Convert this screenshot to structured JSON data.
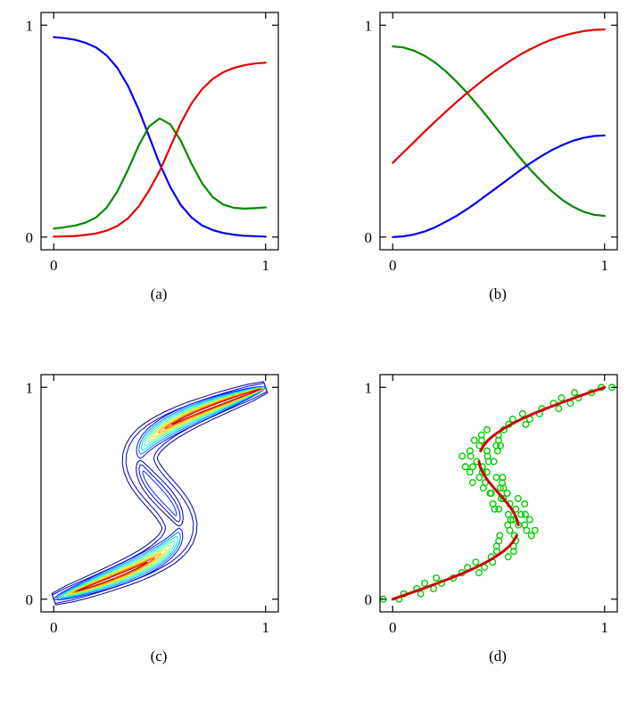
{
  "figure": {
    "background": "#ffffff",
    "panel_count": 4
  },
  "chart_data": [
    {
      "id": "a",
      "type": "line",
      "caption": "(a)",
      "xlim": [
        -0.06,
        1.06
      ],
      "ylim": [
        -0.06,
        1.06
      ],
      "xticks": [
        0,
        1
      ],
      "yticks": [
        0,
        1
      ],
      "xtick_labels": [
        "0",
        "1"
      ],
      "ytick_labels": [
        "0",
        "1"
      ],
      "grid": false,
      "legend": false,
      "x": [
        0,
        0.05,
        0.1,
        0.15,
        0.2,
        0.25,
        0.3,
        0.35,
        0.4,
        0.45,
        0.5,
        0.55,
        0.6,
        0.65,
        0.7,
        0.75,
        0.8,
        0.85,
        0.9,
        0.95,
        1
      ],
      "series": [
        {
          "name": "blue-decreasing-curve",
          "color": "#0000f0",
          "values": [
            0.944,
            0.939,
            0.931,
            0.917,
            0.895,
            0.857,
            0.799,
            0.714,
            0.604,
            0.475,
            0.346,
            0.236,
            0.151,
            0.093,
            0.055,
            0.033,
            0.019,
            0.011,
            0.006,
            0.004,
            0.002
          ]
        },
        {
          "name": "green-bump-curve",
          "color": "#008a00",
          "values": [
            0.04,
            0.046,
            0.054,
            0.068,
            0.093,
            0.139,
            0.214,
            0.317,
            0.43,
            0.522,
            0.56,
            0.532,
            0.454,
            0.347,
            0.254,
            0.189,
            0.153,
            0.138,
            0.134,
            0.136,
            0.14
          ]
        },
        {
          "name": "red-increasing-curve",
          "color": "#e60000",
          "values": [
            0.002,
            0.003,
            0.005,
            0.01,
            0.017,
            0.03,
            0.052,
            0.088,
            0.143,
            0.22,
            0.312,
            0.425,
            0.538,
            0.63,
            0.698,
            0.746,
            0.778,
            0.798,
            0.811,
            0.819,
            0.823
          ]
        }
      ]
    },
    {
      "id": "b",
      "type": "line",
      "caption": "(b)",
      "xlim": [
        -0.06,
        1.06
      ],
      "ylim": [
        -0.06,
        1.06
      ],
      "xticks": [
        0,
        1
      ],
      "yticks": [
        0,
        1
      ],
      "xtick_labels": [
        "0",
        "1"
      ],
      "ytick_labels": [
        "0",
        "1"
      ],
      "grid": false,
      "legend": false,
      "x": [
        0,
        0.05,
        0.1,
        0.15,
        0.2,
        0.25,
        0.3,
        0.35,
        0.4,
        0.45,
        0.5,
        0.55,
        0.6,
        0.65,
        0.7,
        0.75,
        0.8,
        0.85,
        0.9,
        0.95,
        1
      ],
      "series": [
        {
          "name": "green-decreasing-curve",
          "color": "#008a00",
          "values": [
            0.9,
            0.895,
            0.88,
            0.856,
            0.824,
            0.783,
            0.735,
            0.682,
            0.624,
            0.563,
            0.5,
            0.437,
            0.376,
            0.318,
            0.265,
            0.217,
            0.176,
            0.144,
            0.12,
            0.105,
            0.1
          ]
        },
        {
          "name": "red-increasing-curve",
          "color": "#e60000",
          "values": [
            0.35,
            0.399,
            0.448,
            0.497,
            0.545,
            0.591,
            0.636,
            0.679,
            0.72,
            0.759,
            0.795,
            0.829,
            0.86,
            0.887,
            0.911,
            0.932,
            0.949,
            0.962,
            0.972,
            0.978,
            0.98
          ]
        },
        {
          "name": "blue-increasing-curve",
          "color": "#0000f0",
          "values": [
            0,
            0.003,
            0.012,
            0.026,
            0.046,
            0.072,
            0.099,
            0.131,
            0.166,
            0.203,
            0.24,
            0.277,
            0.314,
            0.349,
            0.381,
            0.41,
            0.434,
            0.454,
            0.468,
            0.477,
            0.48
          ]
        }
      ]
    },
    {
      "id": "c",
      "type": "contour",
      "caption": "(c)",
      "xlim": [
        -0.06,
        1.06
      ],
      "ylim": [
        -0.06,
        1.06
      ],
      "xticks": [
        0,
        1
      ],
      "yticks": [
        0,
        1
      ],
      "xtick_labels": [
        "0",
        "1"
      ],
      "ytick_labels": [
        "0",
        "1"
      ],
      "grid": false,
      "legend": false,
      "spine_t": [
        0,
        0.025,
        0.05,
        0.075,
        0.1,
        0.125,
        0.15,
        0.175,
        0.2,
        0.225,
        0.25,
        0.275,
        0.3,
        0.325,
        0.35,
        0.375,
        0.4,
        0.425,
        0.45,
        0.475,
        0.5,
        0.525,
        0.55,
        0.575,
        0.6,
        0.625,
        0.65,
        0.675,
        0.7,
        0.725,
        0.75,
        0.775,
        0.8,
        0.825,
        0.85,
        0.875,
        0.9,
        0.925,
        0.95,
        0.975,
        1
      ],
      "spine_x": [
        0,
        0.072,
        0.143,
        0.211,
        0.276,
        0.337,
        0.393,
        0.442,
        0.485,
        0.521,
        0.55,
        0.571,
        0.585,
        0.592,
        0.593,
        0.587,
        0.576,
        0.561,
        0.543,
        0.522,
        0.5,
        0.478,
        0.457,
        0.439,
        0.424,
        0.413,
        0.407,
        0.408,
        0.415,
        0.429,
        0.45,
        0.479,
        0.515,
        0.558,
        0.607,
        0.663,
        0.724,
        0.789,
        0.857,
        0.928,
        1
      ],
      "bands": [
        {
          "t0": 0,
          "t1": 1,
          "w": 0.088,
          "f": 0.32,
          "color": "#00008f"
        },
        {
          "t0": 0,
          "t1": 1,
          "w": 0.07,
          "f": 0.3,
          "color": "#0000e1"
        },
        {
          "t0": 0.345,
          "t1": 0.655,
          "w": 0.05,
          "f": 0.04,
          "color": "#00008f"
        },
        {
          "t0": 0.365,
          "t1": 0.635,
          "w": 0.034,
          "f": 0.04,
          "color": "#0000e1"
        },
        {
          "t0": 0.395,
          "t1": 0.605,
          "w": 0.019,
          "f": 0.04,
          "color": "#0030ff"
        },
        {
          "t0": 0,
          "t1": 0.335,
          "w": 0.05,
          "f": 0.03,
          "color": "#0010ff"
        },
        {
          "t0": 0.005,
          "t1": 0.315,
          "w": 0.042,
          "f": 0.03,
          "color": "#0080ff"
        },
        {
          "t0": 0.01,
          "t1": 0.295,
          "w": 0.035,
          "f": 0.03,
          "color": "#00e0f0"
        },
        {
          "t0": 0.015,
          "t1": 0.275,
          "w": 0.029,
          "f": 0.03,
          "color": "#40ffb0"
        },
        {
          "t0": 0.02,
          "t1": 0.255,
          "w": 0.023,
          "f": 0.03,
          "color": "#90ff60"
        },
        {
          "t0": 0.025,
          "t1": 0.235,
          "w": 0.018,
          "f": 0.03,
          "color": "#e8e800"
        },
        {
          "t0": 0.03,
          "t1": 0.215,
          "w": 0.013,
          "f": 0.03,
          "color": "#ffa000"
        },
        {
          "t0": 0.035,
          "t1": 0.195,
          "w": 0.009,
          "f": 0.03,
          "color": "#ff4000"
        },
        {
          "t0": 0.04,
          "t1": 0.175,
          "w": 0.005,
          "f": 0.03,
          "color": "#c00000"
        },
        {
          "t0": 0.665,
          "t1": 1,
          "w": 0.05,
          "f": 0.03,
          "color": "#0010ff"
        },
        {
          "t0": 0.685,
          "t1": 0.999,
          "w": 0.042,
          "f": 0.03,
          "color": "#0080ff"
        },
        {
          "t0": 0.705,
          "t1": 0.998,
          "w": 0.035,
          "f": 0.03,
          "color": "#00e0f0"
        },
        {
          "t0": 0.725,
          "t1": 0.997,
          "w": 0.029,
          "f": 0.03,
          "color": "#40ffb0"
        },
        {
          "t0": 0.745,
          "t1": 0.996,
          "w": 0.023,
          "f": 0.03,
          "color": "#90ff60"
        },
        {
          "t0": 0.765,
          "t1": 0.995,
          "w": 0.018,
          "f": 0.03,
          "color": "#e8e800"
        },
        {
          "t0": 0.785,
          "t1": 0.994,
          "w": 0.013,
          "f": 0.03,
          "color": "#ffa000"
        },
        {
          "t0": 0.805,
          "t1": 0.993,
          "w": 0.009,
          "f": 0.03,
          "color": "#ff4000"
        },
        {
          "t0": 0.825,
          "t1": 0.992,
          "w": 0.005,
          "f": 0.03,
          "color": "#c00000"
        }
      ]
    },
    {
      "id": "d",
      "type": "scatter",
      "caption": "(d)",
      "xlim": [
        -0.06,
        1.06
      ],
      "ylim": [
        -0.06,
        1.06
      ],
      "xticks": [
        0,
        1
      ],
      "yticks": [
        0,
        1
      ],
      "xtick_labels": [
        "0",
        "1"
      ],
      "ytick_labels": [
        "0",
        "1"
      ],
      "grid": false,
      "legend": false,
      "marker_color": "#00cf00",
      "marker_radius": 3.3,
      "points": [
        [
          0.03,
          0
        ],
        [
          -0.045,
          0
        ],
        [
          0.052,
          0.025
        ],
        [
          0.132,
          0.025
        ],
        [
          0.193,
          0.05
        ],
        [
          0.113,
          0.05
        ],
        [
          0.151,
          0.075
        ],
        [
          0.231,
          0.075
        ],
        [
          0.286,
          0.1
        ],
        [
          0.206,
          0.1
        ],
        [
          0.407,
          0.125
        ],
        [
          0.327,
          0.125
        ],
        [
          0.353,
          0.15
        ],
        [
          0.433,
          0.15
        ],
        [
          0.472,
          0.175
        ],
        [
          0.392,
          0.175
        ],
        [
          0.465,
          0.2
        ],
        [
          0.545,
          0.2
        ],
        [
          0.571,
          0.225
        ],
        [
          0.491,
          0.225
        ],
        [
          0.49,
          0.25
        ],
        [
          0.57,
          0.25
        ],
        [
          0.581,
          0.275
        ],
        [
          0.501,
          0.275
        ],
        [
          0.655,
          0.3
        ],
        [
          0.575,
          0.3
        ],
        [
          0.505,
          0.3
        ],
        [
          0.552,
          0.325
        ],
        [
          0.632,
          0.325
        ],
        [
          0.672,
          0.325
        ],
        [
          0.623,
          0.35
        ],
        [
          0.543,
          0.35
        ],
        [
          0.593,
          0.35
        ],
        [
          0.567,
          0.375
        ],
        [
          0.647,
          0.375
        ],
        [
          0.557,
          0.375
        ],
        [
          0.626,
          0.4
        ],
        [
          0.546,
          0.4
        ],
        [
          0.606,
          0.4
        ],
        [
          0.501,
          0.425
        ],
        [
          0.581,
          0.425
        ],
        [
          0.481,
          0.425
        ],
        [
          0.553,
          0.45
        ],
        [
          0.473,
          0.45
        ],
        [
          0.623,
          0.45
        ],
        [
          0.592,
          0.475
        ],
        [
          0.512,
          0.475
        ],
        [
          0.522,
          0.475
        ],
        [
          0.46,
          0.5
        ],
        [
          0.54,
          0.5
        ],
        [
          0.465,
          0.5
        ],
        [
          0.508,
          0.525
        ],
        [
          0.428,
          0.525
        ],
        [
          0.523,
          0.525
        ],
        [
          0.437,
          0.55
        ],
        [
          0.517,
          0.55
        ],
        [
          0.377,
          0.55
        ],
        [
          0.489,
          0.575
        ],
        [
          0.409,
          0.575
        ],
        [
          0.519,
          0.575
        ],
        [
          0.364,
          0.6
        ],
        [
          0.444,
          0.6
        ],
        [
          0.424,
          0.6
        ],
        [
          0.423,
          0.625
        ],
        [
          0.343,
          0.625
        ],
        [
          0.378,
          0.625
        ],
        [
          0.477,
          0.65
        ],
        [
          0.397,
          0.65
        ],
        [
          0.452,
          0.65
        ],
        [
          0.368,
          0.675
        ],
        [
          0.448,
          0.675
        ],
        [
          0.328,
          0.675
        ],
        [
          0.445,
          0.7
        ],
        [
          0.365,
          0.7
        ],
        [
          0.495,
          0.7
        ],
        [
          0.409,
          0.725
        ],
        [
          0.489,
          0.725
        ],
        [
          0.509,
          0.725
        ],
        [
          0.5,
          0.75
        ],
        [
          0.42,
          0.75
        ],
        [
          0.385,
          0.75
        ],
        [
          0.419,
          0.775
        ],
        [
          0.499,
          0.775
        ],
        [
          0.525,
          0.8
        ],
        [
          0.445,
          0.8
        ],
        [
          0.628,
          0.825
        ],
        [
          0.548,
          0.825
        ],
        [
          0.567,
          0.85
        ],
        [
          0.647,
          0.85
        ],
        [
          0.693,
          0.875
        ],
        [
          0.613,
          0.875
        ],
        [
          0.704,
          0.9
        ],
        [
          0.784,
          0.9
        ],
        [
          0.839,
          0.925
        ],
        [
          0.759,
          0.925
        ],
        [
          0.797,
          0.95
        ],
        [
          0.877,
          0.95
        ],
        [
          0.938,
          0.975
        ],
        [
          0.858,
          0.975
        ],
        [
          1.035,
          1
        ],
        [
          0.985,
          1
        ]
      ],
      "curves": [
        {
          "name": "red-mode-lower",
          "color": "#cf0000",
          "width": 3,
          "points": [
            [
              0,
              0
            ],
            [
              0.072,
              0.025
            ],
            [
              0.143,
              0.05
            ],
            [
              0.211,
              0.075
            ],
            [
              0.276,
              0.1
            ],
            [
              0.337,
              0.125
            ],
            [
              0.393,
              0.15
            ],
            [
              0.442,
              0.175
            ],
            [
              0.485,
              0.2
            ],
            [
              0.521,
              0.225
            ],
            [
              0.55,
              0.25
            ],
            [
              0.571,
              0.275
            ],
            [
              0.585,
              0.3
            ]
          ]
        },
        {
          "name": "red-mode-middle",
          "color": "#cf0000",
          "width": 3,
          "points": [
            [
              0.593,
              0.35
            ],
            [
              0.587,
              0.375
            ],
            [
              0.576,
              0.4
            ],
            [
              0.561,
              0.425
            ],
            [
              0.543,
              0.45
            ],
            [
              0.522,
              0.475
            ],
            [
              0.5,
              0.5
            ],
            [
              0.478,
              0.525
            ],
            [
              0.457,
              0.55
            ],
            [
              0.439,
              0.575
            ],
            [
              0.424,
              0.6
            ],
            [
              0.413,
              0.625
            ],
            [
              0.407,
              0.65
            ]
          ]
        },
        {
          "name": "red-mode-upper",
          "color": "#cf0000",
          "width": 3,
          "points": [
            [
              0.415,
              0.7
            ],
            [
              0.429,
              0.725
            ],
            [
              0.45,
              0.75
            ],
            [
              0.479,
              0.775
            ],
            [
              0.515,
              0.8
            ],
            [
              0.558,
              0.825
            ],
            [
              0.607,
              0.85
            ],
            [
              0.663,
              0.875
            ],
            [
              0.724,
              0.9
            ],
            [
              0.789,
              0.925
            ],
            [
              0.857,
              0.95
            ],
            [
              0.928,
              0.975
            ],
            [
              1,
              1
            ]
          ]
        }
      ]
    }
  ]
}
